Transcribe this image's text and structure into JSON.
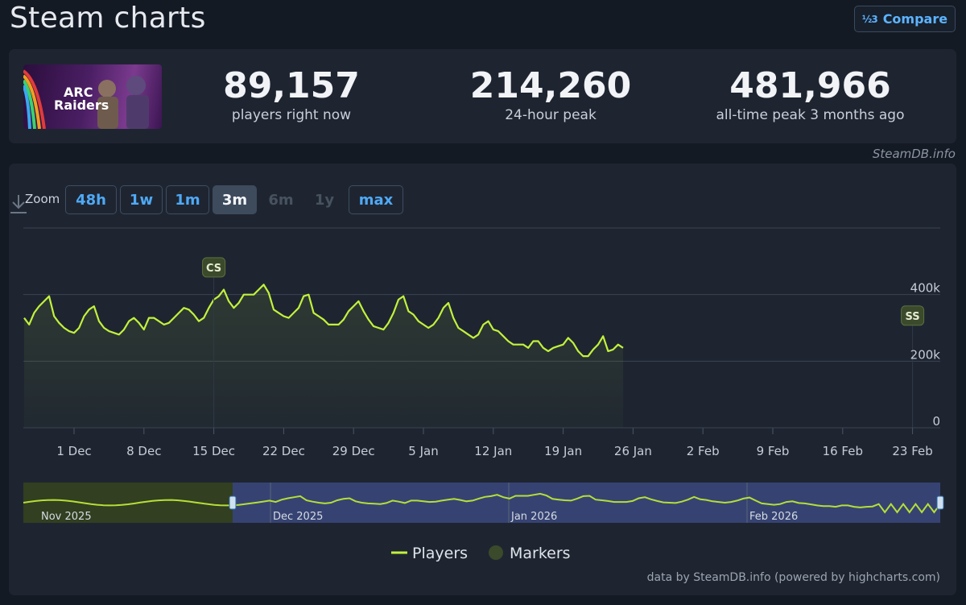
{
  "page": {
    "title": "Steam charts",
    "compare_label": "Compare",
    "compare_icon": "½3",
    "source": "SteamDB.info"
  },
  "stats": [
    {
      "value": "89,157",
      "label": "players right now"
    },
    {
      "value": "214,260",
      "label": "24-hour peak"
    },
    {
      "value": "481,966",
      "label": "all-time peak 3 months ago"
    }
  ],
  "game": {
    "name": "ARC Raiders",
    "logo_text_1": "ARC",
    "logo_text_2": "Raiders"
  },
  "zoom": {
    "label": "Zoom",
    "options": [
      "48h",
      "1w",
      "1m",
      "3m",
      "6m",
      "1y",
      "max"
    ],
    "active": "3m",
    "disabled": [
      "6m",
      "1y"
    ]
  },
  "chart_data": {
    "type": "line",
    "series": [
      {
        "name": "Players",
        "color": "#c1f23c",
        "x_start": "2025-11-26",
        "x_step_days": 0.5,
        "values": [
          330,
          310,
          345,
          365,
          380,
          395,
          335,
          315,
          300,
          290,
          285,
          300,
          335,
          355,
          365,
          320,
          300,
          290,
          285,
          280,
          295,
          320,
          330,
          315,
          295,
          330,
          330,
          320,
          310,
          315,
          330,
          345,
          360,
          355,
          340,
          320,
          330,
          360,
          385,
          395,
          415,
          380,
          360,
          375,
          400,
          400,
          400,
          415,
          430,
          405,
          355,
          345,
          335,
          330,
          345,
          360,
          395,
          400,
          345,
          335,
          325,
          310,
          310,
          310,
          325,
          350,
          365,
          380,
          350,
          325,
          305,
          300,
          295,
          315,
          345,
          385,
          395,
          350,
          340,
          320,
          310,
          300,
          310,
          330,
          360,
          375,
          330,
          300,
          290,
          280,
          270,
          280,
          310,
          320,
          295,
          290,
          275,
          260,
          250,
          250,
          250,
          240,
          260,
          260,
          240,
          230,
          240,
          245,
          250,
          270,
          255,
          230,
          215,
          215,
          235,
          250,
          275,
          230,
          235,
          250,
          240
        ]
      },
      {
        "name": "Markers",
        "color": "#3b4a2a"
      }
    ],
    "x_tick_labels": [
      "1 Dec",
      "8 Dec",
      "15 Dec",
      "22 Dec",
      "29 Dec",
      "5 Jan",
      "12 Jan",
      "19 Jan",
      "26 Jan",
      "2 Feb",
      "9 Feb",
      "16 Feb",
      "23 Feb"
    ],
    "y_tick_labels": [
      "0",
      "200k",
      "400k"
    ],
    "ylim": [
      0,
      600
    ],
    "markers": [
      {
        "label": "CS",
        "date": "2025-12-15"
      },
      {
        "label": "SS",
        "date": "2026-02-23"
      }
    ],
    "navigator": {
      "labels": [
        "Nov 2025",
        "Dec 2025",
        "Jan 2026",
        "Feb 2026"
      ],
      "selected_start": "2025-11-26",
      "selected_end": "2026-02-25"
    },
    "legend": [
      "Players",
      "Markers"
    ],
    "grid": true
  },
  "credit": "data by SteamDB.info (powered by highcharts.com)"
}
